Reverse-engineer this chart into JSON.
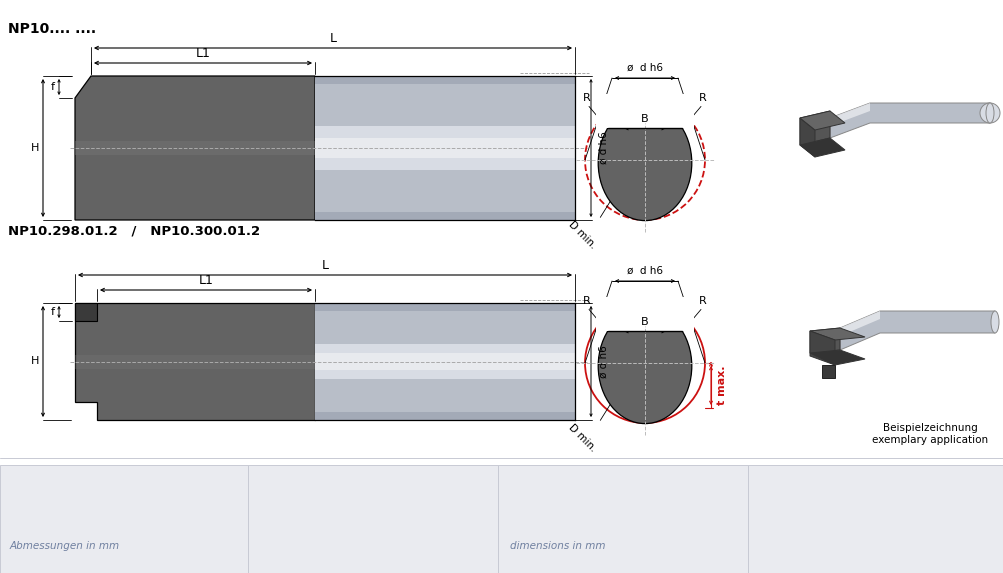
{
  "bg_color": "#ffffff",
  "panel_bg": "#eaebf0",
  "panel_line_color": "#c8cad4",
  "title1": "NP10.... ....",
  "title2": "NP10.298.01.2   /   NP10.300.01.2",
  "label_abmessungen": "Abmessungen in mm",
  "label_dimensions": "dimensions in mm",
  "label_beispiel1": "Beispielzeichnung",
  "label_beispiel2": "exemplary application",
  "dark_insert": "#636363",
  "dark_insert2": "#555555",
  "insert_shadow": "#444444",
  "cyl_base": "#b8bec8",
  "cyl_mid": "#d8dce4",
  "cyl_light": "#e8eaee",
  "cyl_dark_edge": "#9098a8",
  "black": "#000000",
  "dim_line": "#000000",
  "red": "#cc1111",
  "dash_gray": "#999999",
  "center_line": "#aaaaaa",
  "text_panel": "#7080a0",
  "cross_line": "#bbbbbb"
}
